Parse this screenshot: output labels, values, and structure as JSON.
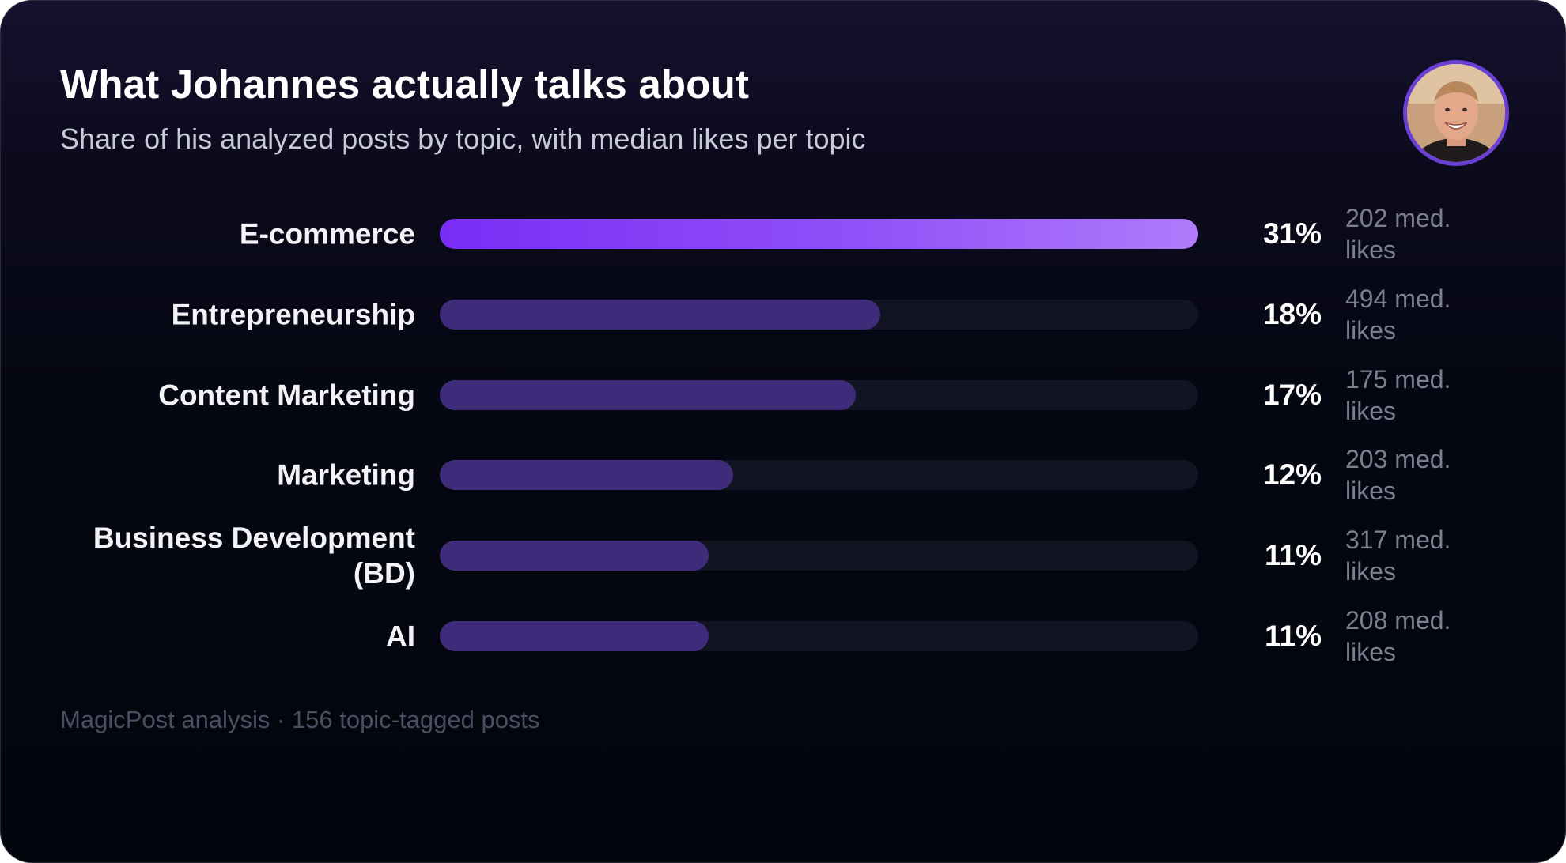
{
  "header": {
    "title": "What Johannes actually talks about",
    "subtitle": "Share of his analyzed posts by topic, with median likes per topic"
  },
  "footer": {
    "text": "MagicPost analysis · 156 topic-tagged posts"
  },
  "colors": {
    "accent_gradient_start": "#7a2df5",
    "accent_gradient_end": "#b07bfb",
    "bar_fill": "#3e2c7a",
    "track": "#121424",
    "avatar_ring": "#6a3fd6"
  },
  "chart_data": {
    "type": "bar",
    "orientation": "horizontal",
    "title": "What Johannes actually talks about",
    "subtitle": "Share of his analyzed posts by topic, with median likes per topic",
    "xlim": [
      0,
      31
    ],
    "categories": [
      "E-commerce",
      "Entrepreneurship",
      "Content Marketing",
      "Marketing",
      "Business Development (BD)",
      "AI"
    ],
    "values": [
      31,
      18,
      17,
      12,
      11,
      11
    ],
    "value_labels": [
      "31%",
      "18%",
      "17%",
      "12%",
      "11%",
      "11%"
    ],
    "median_likes": [
      202,
      494,
      175,
      203,
      317,
      208
    ],
    "likes_labels": [
      "202 med. likes",
      "494 med. likes",
      "175 med. likes",
      "203 med. likes",
      "317 med. likes",
      "208 med. likes"
    ],
    "highlighted_category": "E-commerce",
    "grid": false
  }
}
